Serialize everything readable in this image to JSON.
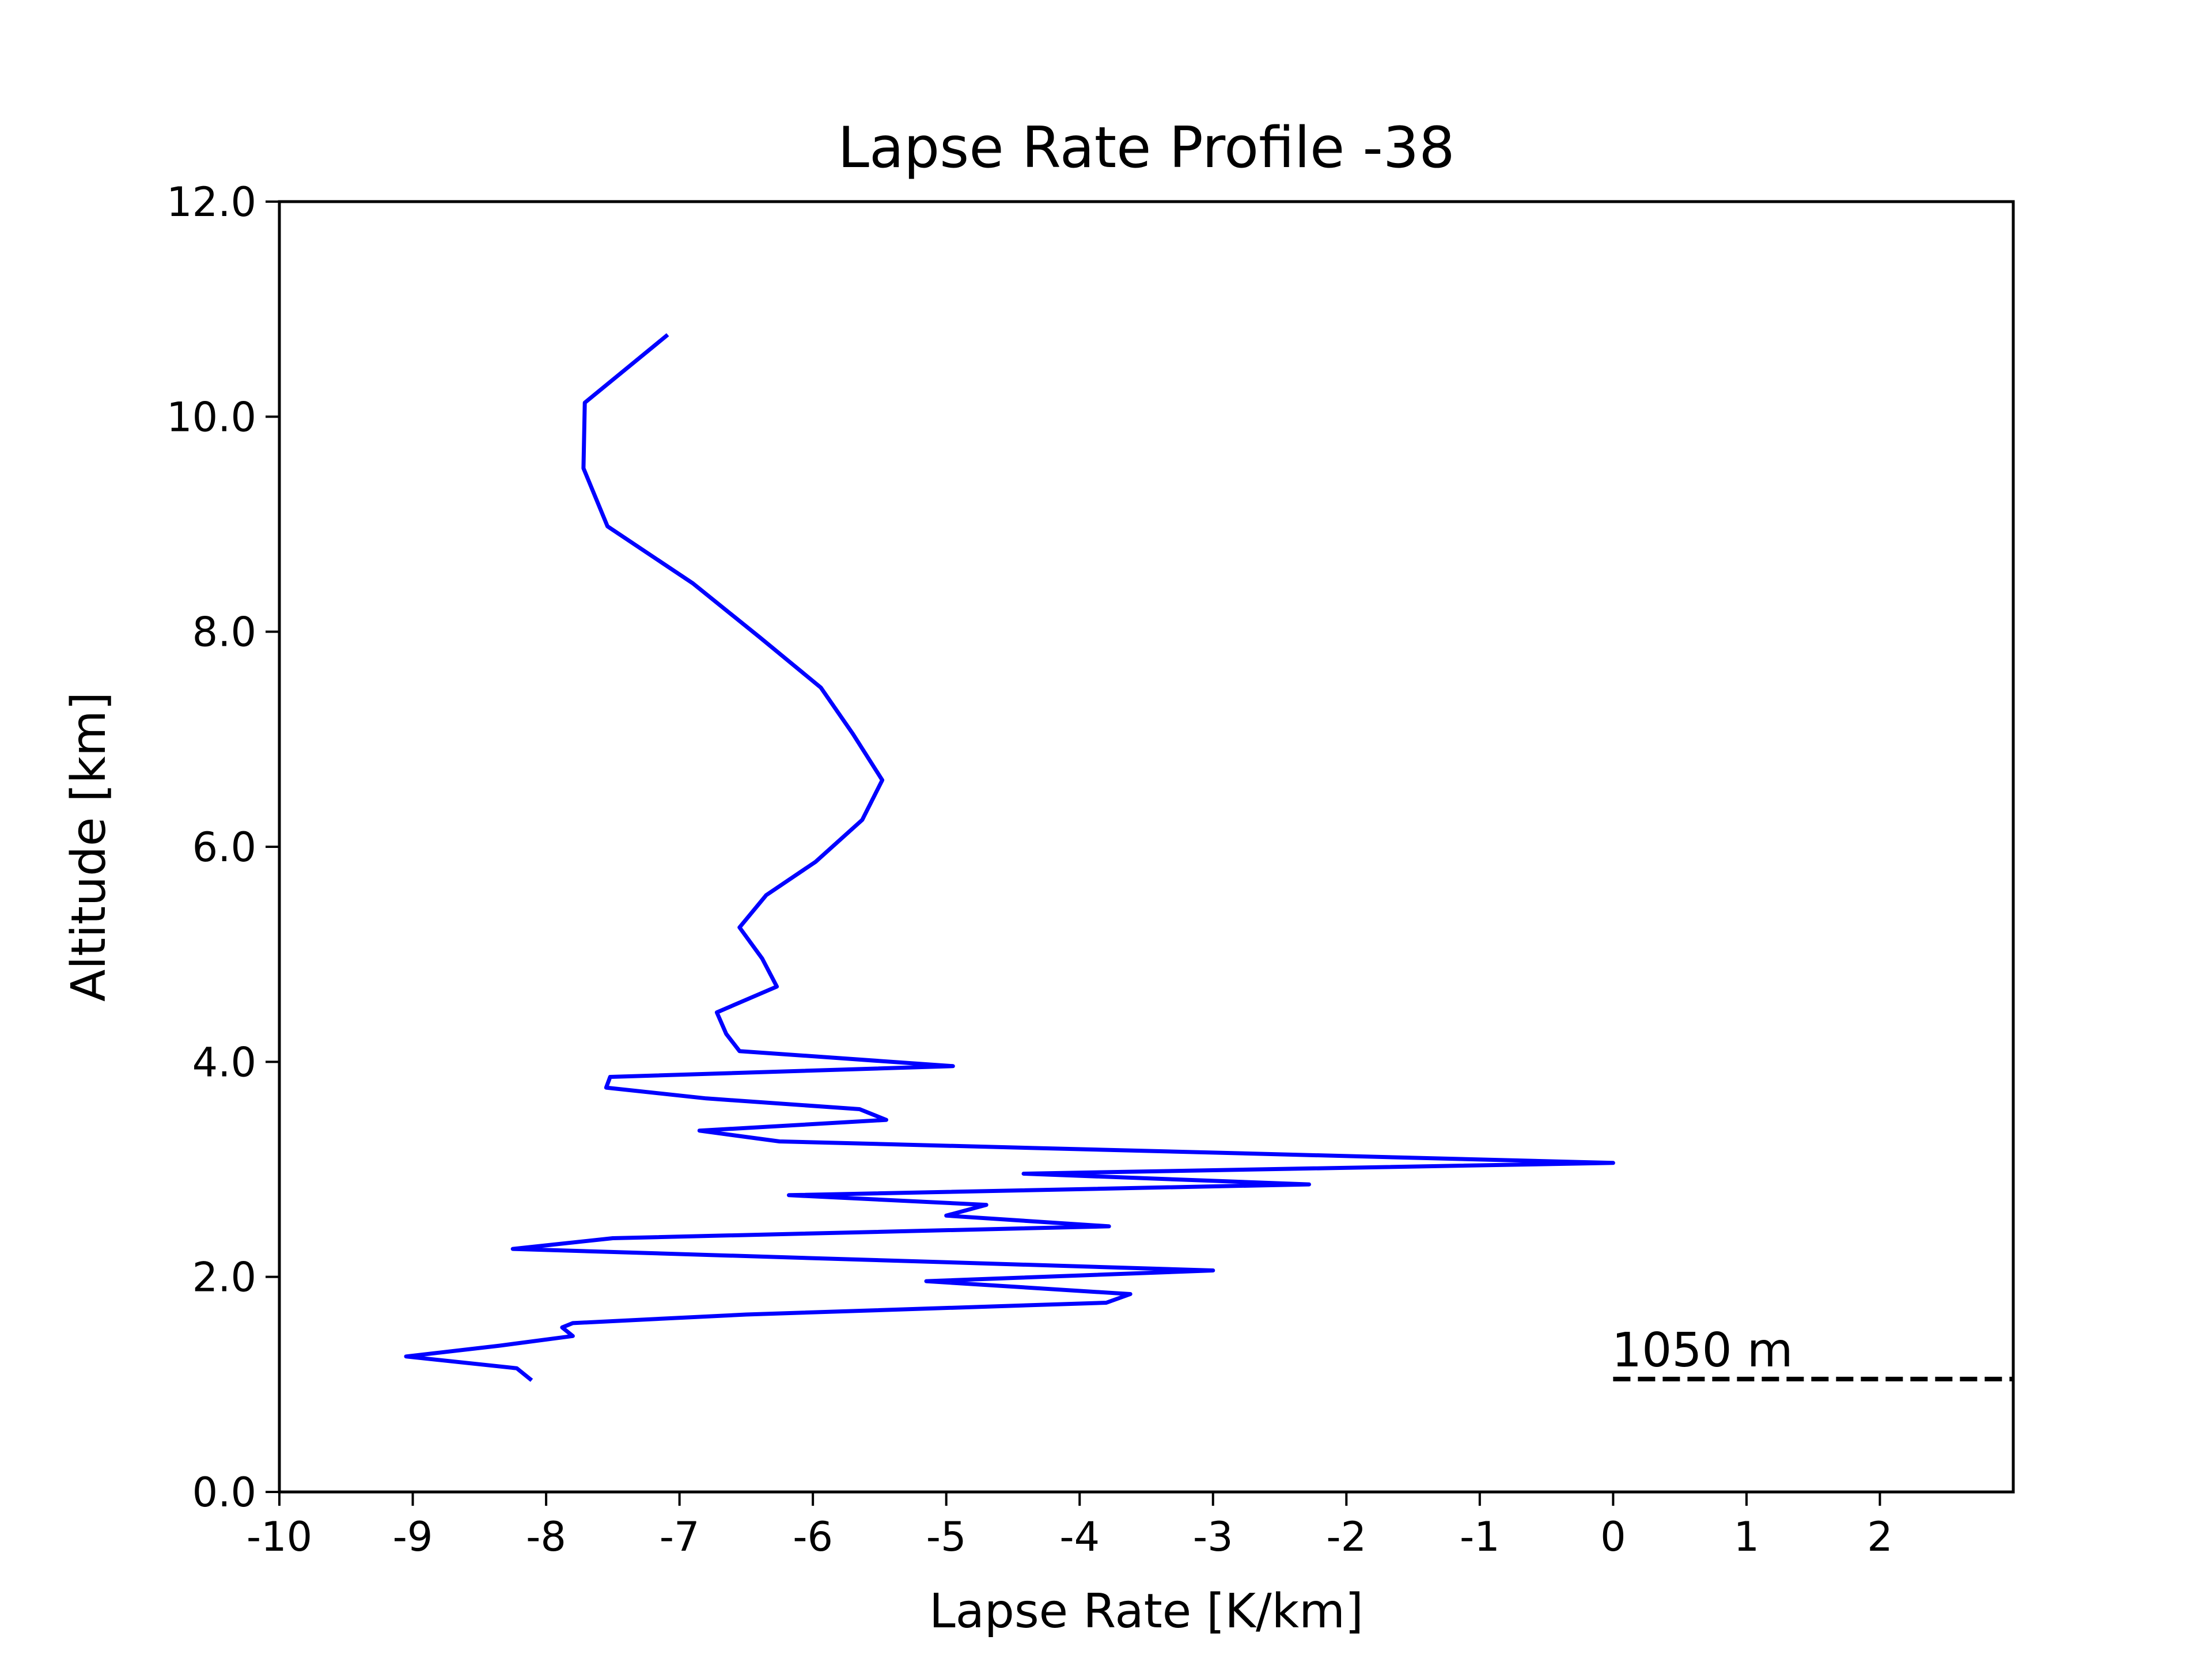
{
  "chart_data": {
    "type": "line",
    "title": "Lapse Rate Profile -38",
    "xlabel": "Lapse Rate [K/km]",
    "ylabel": "Altitude [km]",
    "xlim": [
      -10,
      3
    ],
    "ylim": [
      0,
      12
    ],
    "x_ticks": [
      -10,
      -9,
      -8,
      -7,
      -6,
      -5,
      -4,
      -3,
      -2,
      -1,
      0,
      1,
      2
    ],
    "x_tick_labels": [
      "-10",
      "-9",
      "-8",
      "-7",
      "-6",
      "-5",
      "-4",
      "-3",
      "-2",
      "-1",
      "0",
      "1",
      "2"
    ],
    "y_ticks": [
      0,
      2,
      4,
      6,
      8,
      10,
      12
    ],
    "y_tick_labels": [
      "0.0",
      "2.0",
      "4.0",
      "6.0",
      "8.0",
      "10.0",
      "12.0"
    ],
    "grid": false,
    "series": [
      {
        "color": "#0000ff",
        "style": "solid",
        "points": [
          [
            -8.12,
            1.05
          ],
          [
            -8.22,
            1.15
          ],
          [
            -9.05,
            1.26
          ],
          [
            -8.35,
            1.36
          ],
          [
            -7.8,
            1.45
          ],
          [
            -7.88,
            1.53
          ],
          [
            -7.8,
            1.57
          ],
          [
            -6.5,
            1.65
          ],
          [
            -3.8,
            1.76
          ],
          [
            -3.62,
            1.84
          ],
          [
            -5.15,
            1.96
          ],
          [
            -3.0,
            2.06
          ],
          [
            -8.25,
            2.26
          ],
          [
            -7.5,
            2.36
          ],
          [
            -3.78,
            2.47
          ],
          [
            -5.0,
            2.57
          ],
          [
            -4.7,
            2.67
          ],
          [
            -6.18,
            2.76
          ],
          [
            -2.28,
            2.86
          ],
          [
            -4.42,
            2.96
          ],
          [
            0.0,
            3.06
          ],
          [
            -6.25,
            3.26
          ],
          [
            -6.85,
            3.36
          ],
          [
            -5.45,
            3.46
          ],
          [
            -5.65,
            3.56
          ],
          [
            -6.8,
            3.66
          ],
          [
            -7.55,
            3.76
          ],
          [
            -7.52,
            3.86
          ],
          [
            -4.95,
            3.96
          ],
          [
            -6.55,
            4.1
          ],
          [
            -6.65,
            4.26
          ],
          [
            -6.72,
            4.46
          ],
          [
            -6.27,
            4.7
          ],
          [
            -6.38,
            4.96
          ],
          [
            -6.55,
            5.25
          ],
          [
            -6.35,
            5.55
          ],
          [
            -5.98,
            5.86
          ],
          [
            -5.63,
            6.25
          ],
          [
            -5.48,
            6.62
          ],
          [
            -5.7,
            7.05
          ],
          [
            -5.94,
            7.48
          ],
          [
            -6.4,
            7.95
          ],
          [
            -6.9,
            8.45
          ],
          [
            -7.54,
            8.98
          ],
          [
            -7.72,
            9.52
          ],
          [
            -7.71,
            10.13
          ],
          [
            -7.1,
            10.75
          ]
        ]
      }
    ],
    "reference_line": {
      "y": 1.05,
      "x_start": 0,
      "x_end": 3,
      "style": "dashed",
      "color": "#000000",
      "label": "1050 m"
    }
  }
}
